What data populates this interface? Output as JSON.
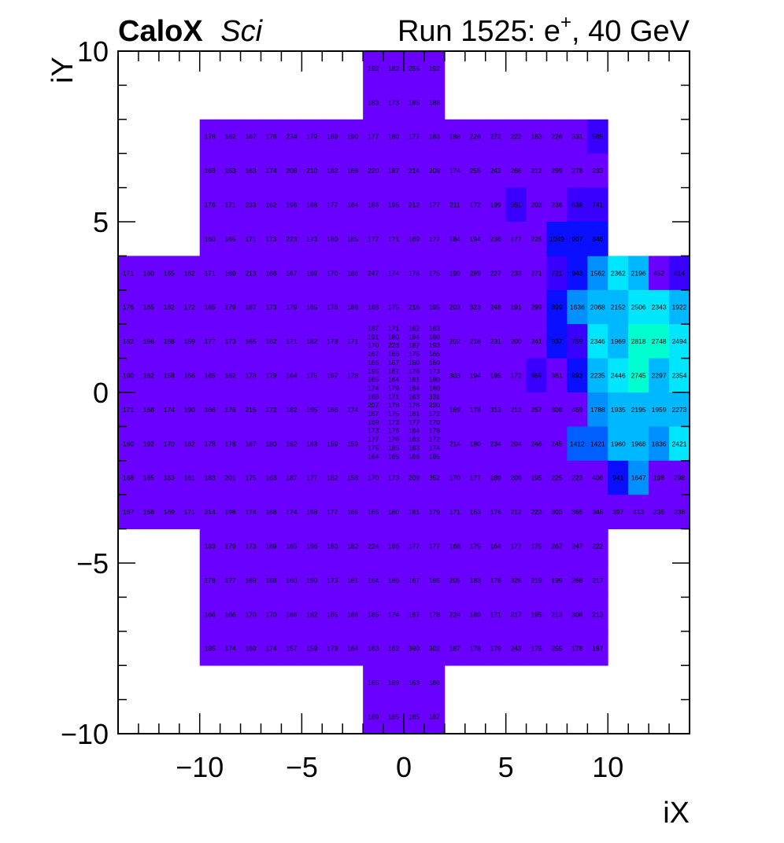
{
  "header": {
    "brand": "CaloX",
    "brand_suffix": "Sci",
    "run_prefix": "Run 1525: e",
    "run_sup": "+",
    "run_suffix": ", 40 GeV"
  },
  "chart_data": {
    "type": "heatmap",
    "xlabel": "iX",
    "ylabel": "iY",
    "xlim": [
      -14,
      14
    ],
    "ylim": [
      -10,
      10
    ],
    "x_ticks": [
      "−10",
      "−5",
      "0",
      "5",
      "10"
    ],
    "x_tick_values": [
      -10,
      -5,
      0,
      5,
      10
    ],
    "y_ticks": [
      "−10",
      "−5",
      "0",
      "5",
      "10"
    ],
    "y_tick_values": [
      -10,
      -5,
      0,
      5,
      10
    ],
    "colors": {
      "base": "#6a00ff",
      "blue_dark": "#3a00ff",
      "blue": "#0a10ff",
      "blue_mid": "#0060ff",
      "blue_light": "#0090ff",
      "azure": "#00b8ff",
      "cyan": "#00e6ff",
      "aqua": "#00ffd0"
    },
    "big_rows": [
      {
        "y": 3.5,
        "x0": -14,
        "values": [
          171,
          160,
          165,
          162,
          171,
          169,
          213,
          166,
          167,
          169,
          170,
          166,
          247,
          174,
          176,
          175,
          190,
          289,
          227,
          233,
          271,
          721,
          943,
          1562,
          2362,
          2196,
          452,
          614
        ]
      },
      {
        "y": 2.5,
        "x0": -14,
        "values": [
          176,
          165,
          162,
          172,
          165,
          179,
          187,
          173,
          179,
          165,
          176,
          188,
          168,
          175,
          216,
          195,
          203,
          323,
          248,
          191,
          299,
          899,
          1636,
          2068,
          2152,
          2506,
          2343,
          1922
        ]
      },
      {
        "y": 1.5,
        "x0": -14,
        "values": [
          162,
          166,
          168,
          159,
          177,
          173,
          165,
          162,
          171,
          182,
          178,
          171,
          null,
          null,
          null,
          null,
          202,
          218,
          231,
          200,
          241,
          937,
          759,
          2346,
          1969,
          2818,
          2748,
          2494
        ]
      },
      {
        "y": 0.5,
        "x0": -14,
        "values": [
          160,
          162,
          158,
          166,
          165,
          162,
          173,
          179,
          164,
          175,
          197,
          178,
          null,
          null,
          null,
          null,
          303,
          194,
          195,
          172,
          659,
          361,
          893,
          2235,
          2446,
          2745,
          2297,
          2354
        ]
      },
      {
        "y": -0.5,
        "x0": -14,
        "values": [
          171,
          168,
          174,
          190,
          166,
          176,
          215,
          172,
          182,
          195,
          166,
          174,
          null,
          null,
          null,
          null,
          169,
          178,
          313,
          212,
          257,
          308,
          469,
          1788,
          1935,
          2195,
          1959,
          2273
        ]
      },
      {
        "y": -1.5,
        "x0": -14,
        "values": [
          160,
          192,
          170,
          162,
          178,
          178,
          167,
          180,
          182,
          163,
          159,
          159,
          null,
          null,
          null,
          null,
          214,
          180,
          234,
          204,
          246,
          245,
          1412,
          1421,
          1960,
          1968,
          1836,
          2421
        ]
      },
      {
        "y": -2.5,
        "x0": -14,
        "values": [
          168,
          165,
          163,
          161,
          183,
          201,
          175,
          163,
          187,
          177,
          182,
          158,
          170,
          173,
          209,
          352,
          170,
          177,
          189,
          209,
          195,
          225,
          223,
          406,
          941,
          1647,
          198,
          298
        ]
      },
      {
        "y": -3.5,
        "x0": -14,
        "values": [
          167,
          168,
          169,
          171,
          214,
          198,
          174,
          168,
          174,
          158,
          177,
          165,
          165,
          160,
          181,
          179,
          171,
          163,
          176,
          212,
          223,
          303,
          365,
          345,
          397,
          413,
          235,
          238
        ]
      }
    ],
    "mid_rows": [
      {
        "y": 7.5,
        "x0": -10,
        "values": [
          178,
          162,
          167,
          176,
          234,
          179,
          169,
          190,
          177,
          180,
          177,
          183,
          188,
          226,
          272,
          222,
          183,
          226,
          331,
          565
        ]
      },
      {
        "y": 6.5,
        "x0": -10,
        "values": [
          169,
          163,
          163,
          174,
          208,
          210,
          162,
          168,
          220,
          187,
          214,
          208,
          174,
          255,
          242,
          266,
          212,
          299,
          278,
          233
        ]
      },
      {
        "y": 5.5,
        "x0": -10,
        "values": [
          176,
          171,
          233,
          162,
          196,
          168,
          177,
          164,
          186,
          195,
          212,
          177,
          211,
          172,
          199,
          551,
          203,
          236,
          638,
          741
        ]
      },
      {
        "y": 4.5,
        "x0": -10,
        "values": [
          160,
          165,
          171,
          173,
          223,
          173,
          180,
          165,
          177,
          171,
          169,
          177,
          184,
          194,
          236,
          177,
          225,
          1049,
          907,
          846
        ]
      },
      {
        "y": -4.5,
        "x0": -10,
        "values": [
          183,
          179,
          173,
          169,
          165,
          196,
          180,
          182,
          224,
          166,
          177,
          177,
          168,
          175,
          164,
          177,
          175,
          267,
          247,
          222
        ]
      },
      {
        "y": -5.5,
        "x0": -10,
        "values": [
          178,
          177,
          169,
          168,
          160,
          190,
          173,
          161,
          164,
          186,
          167,
          165,
          205,
          183,
          178,
          326,
          219,
          199,
          268,
          217
        ]
      },
      {
        "y": -6.5,
        "x0": -10,
        "values": [
          166,
          166,
          170,
          170,
          166,
          182,
          165,
          166,
          185,
          174,
          167,
          178,
          224,
          169,
          171,
          217,
          195,
          213,
          306,
          213
        ]
      },
      {
        "y": -7.5,
        "x0": -10,
        "values": [
          185,
          174,
          169,
          174,
          157,
          159,
          179,
          164,
          163,
          162,
          380,
          302,
          187,
          178,
          179,
          243,
          175,
          255,
          178,
          187
        ]
      }
    ],
    "top_rows": [
      {
        "y": 9.5,
        "x0": -2,
        "values": [
          192,
          182,
          255,
          192
        ]
      },
      {
        "y": 8.5,
        "x0": -2,
        "values": [
          183,
          173,
          185,
          188
        ]
      }
    ],
    "bottom_rows": [
      {
        "y": -8.5,
        "x0": -2,
        "values": [
          165,
          169,
          163,
          166
        ]
      },
      {
        "y": -9.5,
        "x0": -2,
        "values": [
          169,
          165,
          165,
          167
        ]
      }
    ],
    "fine_rows": [
      {
        "y": 1.875,
        "x0": -2,
        "values": [
          187,
          171,
          162,
          163
        ]
      },
      {
        "y": 1.625,
        "x0": -2,
        "values": [
          191,
          180,
          184,
          160
        ]
      },
      {
        "y": 1.375,
        "x0": -2,
        "values": [
          170,
          223,
          187,
          193
        ]
      },
      {
        "y": 1.125,
        "x0": -2,
        "values": [
          167,
          166,
          175,
          166
        ]
      },
      {
        "y": 0.875,
        "x0": -2,
        "values": [
          165,
          167,
          160,
          160
        ]
      },
      {
        "y": 0.625,
        "x0": -2,
        "values": [
          195,
          167,
          176,
          173
        ]
      },
      {
        "y": 0.375,
        "x0": -2,
        "values": [
          165,
          164,
          161,
          160
        ]
      },
      {
        "y": 0.125,
        "x0": -2,
        "values": [
          174,
          179,
          164,
          160
        ]
      },
      {
        "y": -0.125,
        "x0": -2,
        "values": [
          168,
          171,
          163,
          331
        ]
      },
      {
        "y": -0.375,
        "x0": -2,
        "values": [
          207,
          178,
          176,
          230
        ]
      },
      {
        "y": -0.625,
        "x0": -2,
        "values": [
          167,
          175,
          181,
          172
        ]
      },
      {
        "y": -0.875,
        "x0": -2,
        "values": [
          169,
          172,
          177,
          170
        ]
      },
      {
        "y": -1.125,
        "x0": -2,
        "values": [
          173,
          176,
          164,
          178
        ]
      },
      {
        "y": -1.375,
        "x0": -2,
        "values": [
          177,
          176,
          163,
          172
        ]
      },
      {
        "y": -1.625,
        "x0": -2,
        "values": [
          175,
          185,
          163,
          174
        ]
      },
      {
        "y": -1.875,
        "x0": -2,
        "values": [
          164,
          165,
          166,
          165
        ]
      }
    ]
  }
}
